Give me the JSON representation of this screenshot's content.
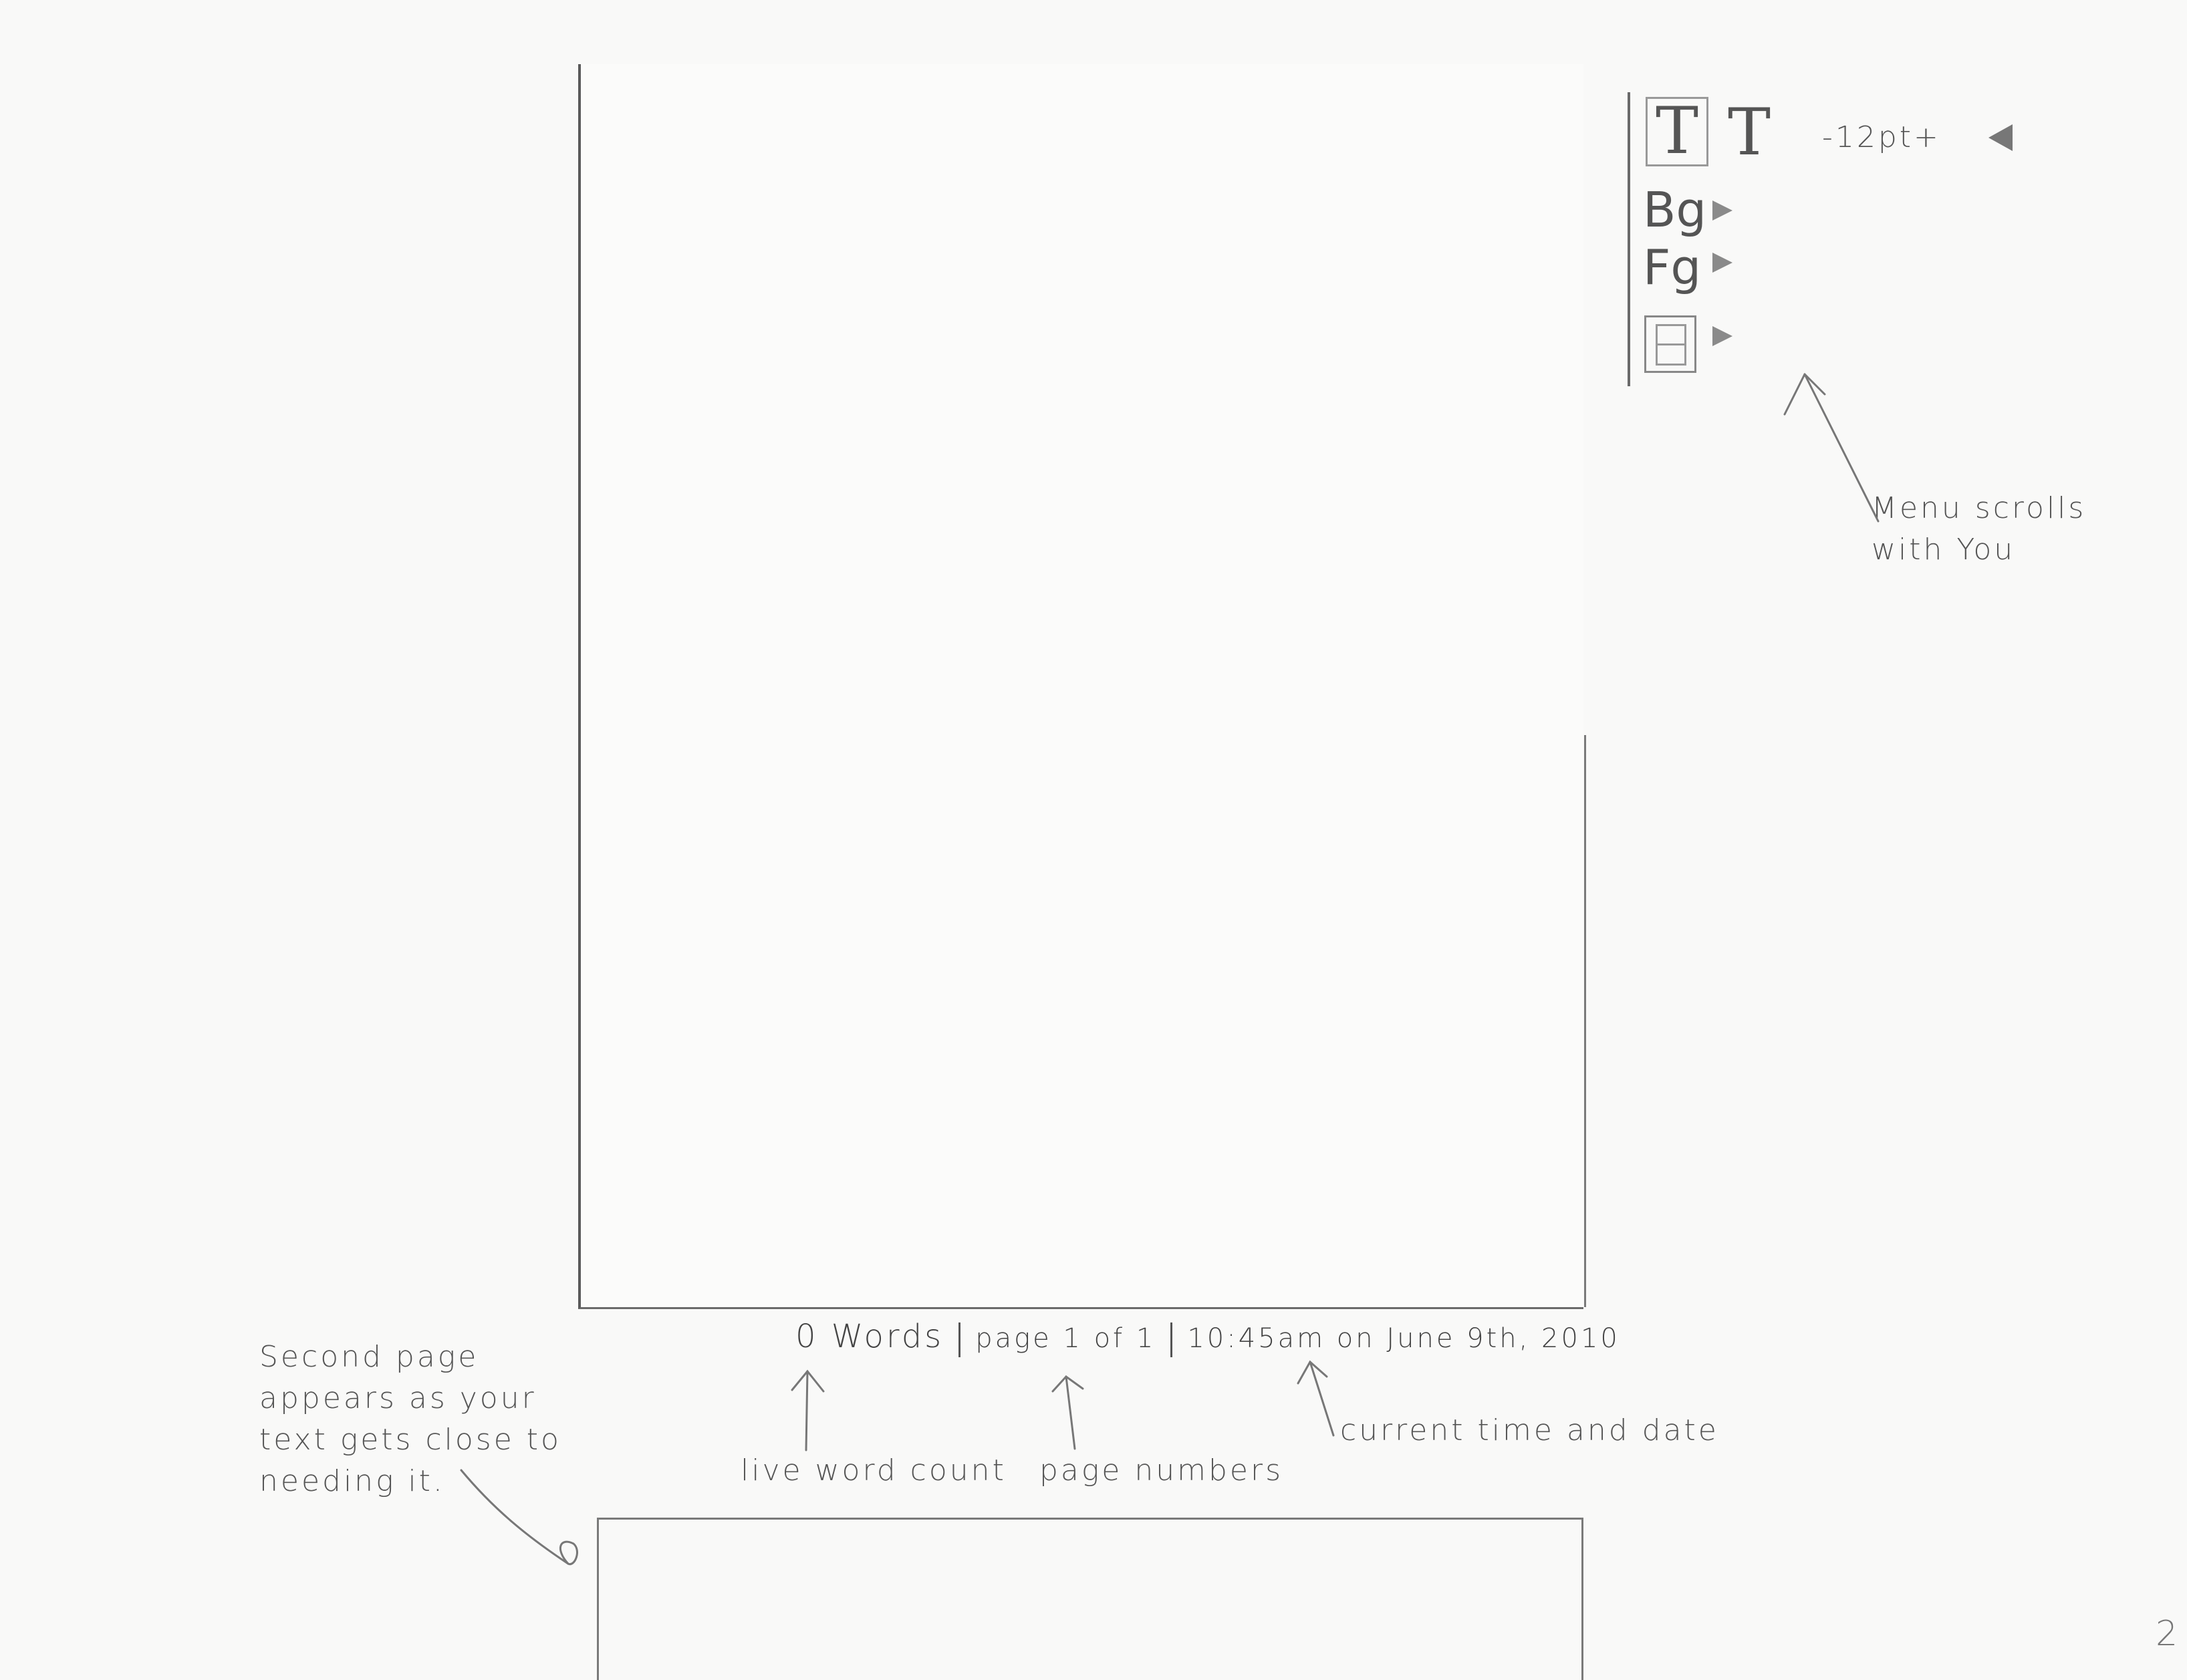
{
  "editor": {
    "page": "page 1",
    "next_page": "page 2"
  },
  "menu": {
    "font_size_control": "-12pt+",
    "bg_label": "Bg",
    "fg_label": "Fg",
    "text_style_serif_glyph": "T",
    "text_style_sans_glyph": "T",
    "icons": [
      "text-style-serif-icon",
      "text-style-sans-icon",
      "collapse-triangle-icon",
      "play-triangle-icon",
      "layout-icon"
    ]
  },
  "status_bar": {
    "word_count": "0 Words",
    "page_indicator": "page 1 of 1",
    "time_date": "10:45am on June 9th, 2010"
  },
  "annotations": {
    "menu_scrolls": [
      "Menu scrolls",
      "with You"
    ],
    "second_page": [
      "Second page",
      "appears as your",
      "text gets close to",
      "needing it."
    ],
    "live_word_count": "live word count",
    "page_numbers": "page numbers",
    "current_time_and_date": "current time and date"
  },
  "sheet_number": "2"
}
